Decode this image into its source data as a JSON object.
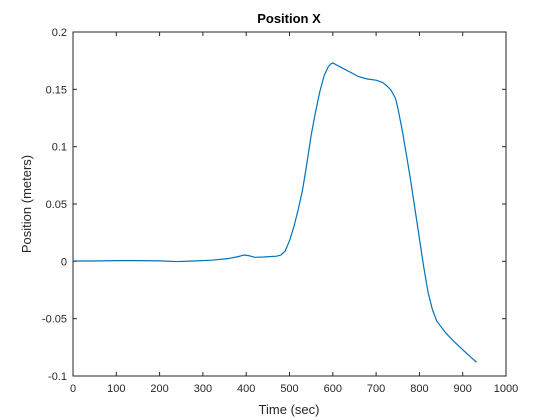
{
  "chart_data": {
    "type": "line",
    "title": "Position X",
    "xlabel": "Time (sec)",
    "ylabel": "Position (meters)",
    "xlim": [
      0,
      1000
    ],
    "ylim": [
      -0.1,
      0.2
    ],
    "xticks": [
      0,
      100,
      200,
      300,
      400,
      500,
      600,
      700,
      800,
      900,
      1000
    ],
    "xtick_labels": [
      "0",
      "100",
      "200",
      "300",
      "400",
      "500",
      "600",
      "700",
      "800",
      "900",
      "1000"
    ],
    "yticks": [
      -0.1,
      -0.05,
      0,
      0.05,
      0.1,
      0.15,
      0.2
    ],
    "ytick_labels": [
      "-0.1",
      "-0.05",
      "0",
      "0.05",
      "0.1",
      "0.15",
      "0.2"
    ],
    "grid": false,
    "box": true,
    "series": [
      {
        "color": "#0072bd",
        "x": [
          0,
          50,
          100,
          150,
          200,
          240,
          280,
          320,
          360,
          380,
          395,
          405,
          420,
          440,
          470,
          480,
          490,
          500,
          510,
          520,
          530,
          540,
          550,
          560,
          570,
          580,
          590,
          595,
          600,
          610,
          620,
          640,
          660,
          680,
          700,
          715,
          725,
          735,
          745,
          750,
          760,
          770,
          780,
          790,
          800,
          810,
          820,
          830,
          840,
          850,
          860,
          880,
          900,
          920,
          932
        ],
        "y": [
          0.0003,
          0.0003,
          0.0006,
          0.0006,
          0.0004,
          -0.0002,
          0.0003,
          0.001,
          0.0025,
          0.004,
          0.0055,
          0.005,
          0.0035,
          0.0038,
          0.0045,
          0.0055,
          0.009,
          0.018,
          0.03,
          0.045,
          0.062,
          0.085,
          0.11,
          0.13,
          0.148,
          0.162,
          0.17,
          0.172,
          0.173,
          0.171,
          0.169,
          0.165,
          0.161,
          0.159,
          0.158,
          0.156,
          0.153,
          0.149,
          0.142,
          0.134,
          0.115,
          0.093,
          0.07,
          0.045,
          0.02,
          -0.005,
          -0.027,
          -0.042,
          -0.052,
          -0.057,
          -0.062,
          -0.07,
          -0.077,
          -0.084,
          -0.088
        ]
      }
    ]
  }
}
